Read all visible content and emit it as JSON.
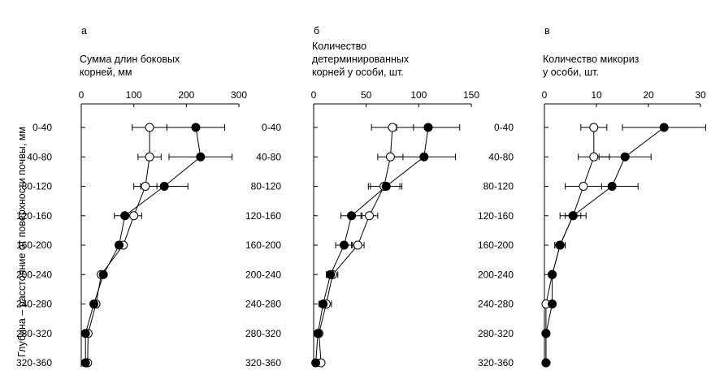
{
  "y_axis_label": "Глубина – расстояние от поверхности почвы, мм",
  "chart_data": [
    {
      "type": "line",
      "panel_letter": "а",
      "title_lines": [
        "Сумма длин  боковых",
        "корней, мм"
      ],
      "categories": [
        "0-40",
        "40-80",
        "80-120",
        "120-160",
        "160-200",
        "200-240",
        "240-280",
        "280-320",
        "320-360"
      ],
      "xlim": [
        0,
        300
      ],
      "xticks": [
        0,
        100,
        200,
        300
      ],
      "orientation": "horizontal-values-vertical-categories",
      "series": [
        {
          "name": "open",
          "marker": "open-circle",
          "values": [
            130,
            130,
            122,
            100,
            80,
            38,
            28,
            13,
            12
          ],
          "errors": [
            33,
            22,
            22,
            15,
            5,
            5,
            5,
            3,
            3
          ]
        },
        {
          "name": "filled",
          "marker": "filled-circle",
          "values": [
            218,
            227,
            158,
            83,
            72,
            42,
            24,
            8,
            8
          ],
          "errors": [
            55,
            60,
            45,
            20,
            6,
            5,
            5,
            3,
            3
          ]
        }
      ]
    },
    {
      "type": "line",
      "panel_letter": "б",
      "title_lines": [
        "Количество",
        "детерминированных",
        "корней у особи, шт."
      ],
      "categories": [
        "0-40",
        "40-80",
        "80-120",
        "120-160",
        "160-200",
        "200-240",
        "240-280",
        "280-320",
        "320-360"
      ],
      "xlim": [
        0,
        150
      ],
      "xticks": [
        0,
        50,
        100,
        150
      ],
      "orientation": "horizontal-values-vertical-categories",
      "series": [
        {
          "name": "open",
          "marker": "open-circle",
          "values": [
            75,
            73,
            67,
            53,
            42,
            18,
            12,
            5,
            7
          ],
          "errors": [
            20,
            12,
            15,
            8,
            6,
            5,
            5,
            1,
            1
          ]
        },
        {
          "name": "filled",
          "marker": "filled-circle",
          "values": [
            109,
            105,
            69,
            36,
            29,
            16,
            9,
            4,
            2
          ],
          "errors": [
            30,
            30,
            15,
            10,
            8,
            4,
            4,
            1,
            1
          ]
        }
      ]
    },
    {
      "type": "line",
      "panel_letter": "в",
      "title_lines": [
        "Количество микориз",
        "у особи, шт."
      ],
      "categories": [
        "0-40",
        "40-80",
        "80-120",
        "120-160",
        "160-200",
        "200-240",
        "240-280",
        "280-320",
        "320-360"
      ],
      "xlim": [
        0,
        30
      ],
      "xticks": [
        0,
        10,
        20,
        30
      ],
      "orientation": "horizontal-values-vertical-categories",
      "series": [
        {
          "name": "open",
          "marker": "open-circle",
          "values": [
            9.5,
            9.5,
            7.5,
            5.5,
            3,
            1.5,
            0.3,
            0.3,
            0.3
          ],
          "errors": [
            2.5,
            3,
            3.5,
            2.5,
            1,
            0.5,
            0.3,
            0.1,
            0.1
          ]
        },
        {
          "name": "filled",
          "marker": "filled-circle",
          "values": [
            23,
            15.5,
            13,
            5.5,
            3,
            1.5,
            1.5,
            0.3,
            0.3
          ],
          "errors": [
            8,
            5,
            5,
            1.5,
            1,
            0.5,
            0.5,
            0.1,
            0.1
          ]
        }
      ]
    }
  ]
}
